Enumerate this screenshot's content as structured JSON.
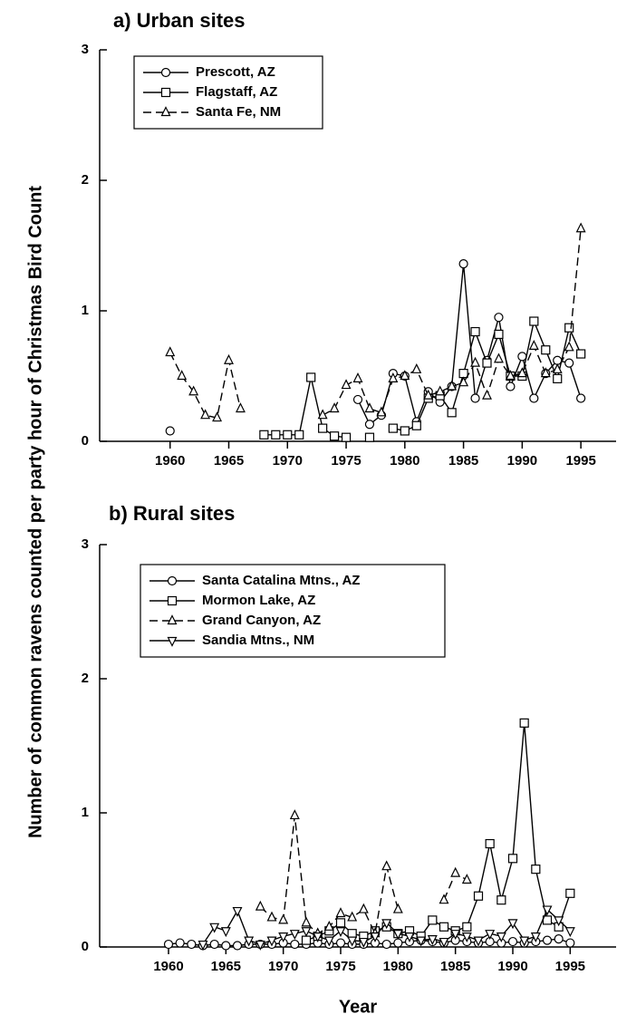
{
  "chart_data": [
    {
      "type": "line",
      "title": "a) Urban sites",
      "ylabel": "Number of common ravens counted per party hour of Christmas Bird Count",
      "x": [
        1960,
        1961,
        1962,
        1963,
        1964,
        1965,
        1966,
        1967,
        1968,
        1969,
        1970,
        1971,
        1972,
        1973,
        1974,
        1975,
        1976,
        1977,
        1978,
        1979,
        1980,
        1981,
        1982,
        1983,
        1984,
        1985,
        1986,
        1987,
        1988,
        1989,
        1990,
        1991,
        1992,
        1993,
        1994,
        1995
      ],
      "xlim": [
        1954,
        1998
      ],
      "xticks": [
        1960,
        1965,
        1970,
        1975,
        1980,
        1985,
        1990,
        1995
      ],
      "ylim": [
        0,
        3
      ],
      "yticks": [
        0,
        1,
        2,
        3
      ],
      "legend": "upper left",
      "series": [
        {
          "name": "Prescott, AZ",
          "color": "#000000",
          "marker": "circle",
          "dash": false,
          "values": [
            0.08,
            null,
            null,
            null,
            null,
            null,
            null,
            null,
            null,
            null,
            null,
            null,
            null,
            null,
            null,
            null,
            0.32,
            0.13,
            0.2,
            0.52,
            0.5,
            0.15,
            0.38,
            0.3,
            0.42,
            1.36,
            0.33,
            0.62,
            0.95,
            0.42,
            0.65,
            0.33,
            0.52,
            0.62,
            0.6,
            0.33
          ]
        },
        {
          "name": "Flagstaff, AZ",
          "color": "#000000",
          "marker": "square",
          "dash": false,
          "values": [
            null,
            null,
            null,
            null,
            null,
            null,
            null,
            null,
            0.05,
            0.05,
            0.05,
            0.05,
            0.49,
            0.1,
            0.04,
            0.03,
            null,
            0.03,
            null,
            0.1,
            0.08,
            0.12,
            0.33,
            0.35,
            0.22,
            0.52,
            0.84,
            0.6,
            0.82,
            0.5,
            0.5,
            0.92,
            0.7,
            0.48,
            0.87,
            0.67
          ]
        },
        {
          "name": "Santa Fe, NM",
          "color": "#000000",
          "marker": "triangle",
          "dash": true,
          "values": [
            0.68,
            0.5,
            0.38,
            0.2,
            0.18,
            0.62,
            0.25,
            null,
            null,
            null,
            null,
            null,
            null,
            0.2,
            0.25,
            0.43,
            0.48,
            0.25,
            0.22,
            0.48,
            0.5,
            0.55,
            0.35,
            0.38,
            0.42,
            0.45,
            0.6,
            0.35,
            0.63,
            0.5,
            0.52,
            0.73,
            0.52,
            0.55,
            0.72,
            1.63
          ]
        }
      ]
    },
    {
      "type": "line",
      "title": "b) Rural sites",
      "xlabel": "Year",
      "x": [
        1960,
        1961,
        1962,
        1963,
        1964,
        1965,
        1966,
        1967,
        1968,
        1969,
        1970,
        1971,
        1972,
        1973,
        1974,
        1975,
        1976,
        1977,
        1978,
        1979,
        1980,
        1981,
        1982,
        1983,
        1984,
        1985,
        1986,
        1987,
        1988,
        1989,
        1990,
        1991,
        1992,
        1993,
        1994,
        1995
      ],
      "xlim": [
        1954,
        1999
      ],
      "xticks": [
        1960,
        1965,
        1970,
        1975,
        1980,
        1985,
        1990,
        1995
      ],
      "ylim": [
        0,
        3
      ],
      "yticks": [
        0,
        1,
        2,
        3
      ],
      "legend": "upper left",
      "series": [
        {
          "name": "Santa Catalina Mtns., AZ",
          "color": "#000000",
          "marker": "circle",
          "dash": false,
          "values": [
            0.02,
            0.03,
            0.02,
            0.01,
            0.02,
            0.01,
            0.01,
            0.02,
            0.02,
            0.02,
            0.03,
            0.02,
            0.02,
            0.03,
            0.02,
            0.03,
            0.02,
            0.02,
            0.03,
            0.02,
            0.03,
            0.04,
            0.05,
            0.04,
            0.03,
            0.05,
            0.04,
            0.03,
            0.04,
            0.03,
            0.04,
            0.03,
            0.04,
            0.05,
            0.06,
            0.03
          ]
        },
        {
          "name": "Mormon Lake, AZ",
          "color": "#000000",
          "marker": "square",
          "dash": false,
          "values": [
            null,
            null,
            null,
            null,
            null,
            null,
            null,
            null,
            null,
            null,
            null,
            null,
            0.05,
            0.08,
            0.12,
            0.18,
            0.1,
            0.08,
            0.12,
            0.15,
            0.1,
            0.12,
            0.08,
            0.2,
            0.15,
            0.12,
            0.15,
            0.38,
            0.77,
            0.35,
            0.66,
            1.67,
            0.58,
            0.2,
            0.15,
            0.4
          ]
        },
        {
          "name": "Grand Canyon, AZ",
          "color": "#000000",
          "marker": "triangle",
          "dash": true,
          "values": [
            null,
            null,
            null,
            null,
            null,
            null,
            null,
            null,
            0.3,
            0.22,
            0.2,
            0.98,
            0.18,
            0.1,
            0.15,
            0.25,
            0.22,
            0.28,
            0.1,
            0.6,
            0.28,
            null,
            null,
            null,
            0.35,
            0.55,
            0.5,
            null,
            null,
            null,
            null,
            null,
            null,
            null,
            null,
            null
          ]
        },
        {
          "name": "Sandia Mtns., NM",
          "color": "#000000",
          "marker": "triangle-down",
          "dash": false,
          "values": [
            null,
            null,
            null,
            0.02,
            0.15,
            0.12,
            0.27,
            0.05,
            0.02,
            0.05,
            0.08,
            0.1,
            0.12,
            0.08,
            0.05,
            0.12,
            0.05,
            0.04,
            0.08,
            0.18,
            0.1,
            0.08,
            0.05,
            0.06,
            0.04,
            0.1,
            0.08,
            0.05,
            0.1,
            0.08,
            0.18,
            0.05,
            0.08,
            0.28,
            0.2,
            0.12
          ]
        }
      ]
    }
  ]
}
